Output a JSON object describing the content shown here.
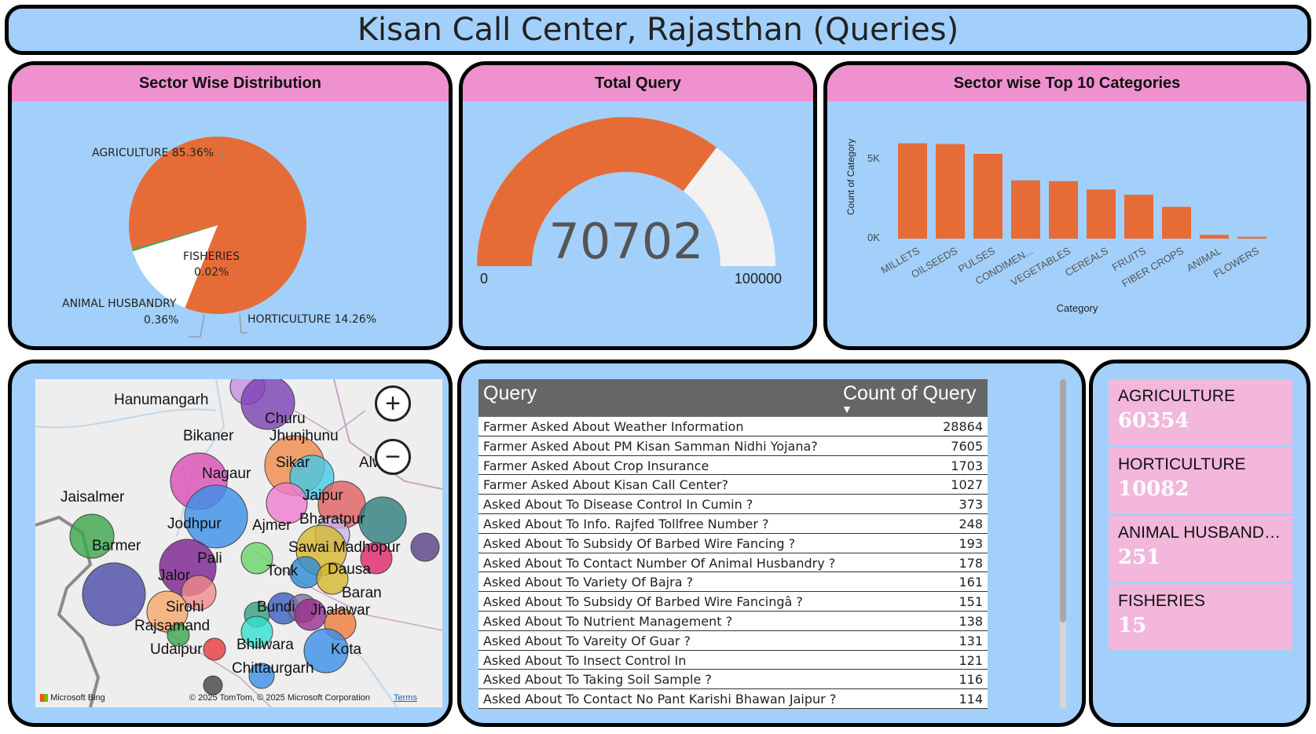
{
  "dashboard": {
    "title": "Kisan Call Center, Rajasthan (Queries)"
  },
  "pie": {
    "header": "Sector Wise Distribution",
    "labels": {
      "agriculture": "AGRICULTURE 85.36%",
      "fisheries_name": "FISHERIES",
      "fisheries_pct": "0.02%",
      "animal_name": "ANIMAL HUSBANDRY",
      "animal_pct": "0.36%",
      "horticulture": "HORTICULTURE 14.26%"
    },
    "colors": {
      "agriculture": "#e66c37",
      "horticulture": "#ffffff",
      "animal": "#39b54a",
      "fisheries": "#6b007b"
    }
  },
  "gauge": {
    "header": "Total Query",
    "value": "70702",
    "min": "0",
    "max": "100000",
    "fill_fraction": 0.70702,
    "colors": {
      "fill": "#e66c37",
      "track": "#f3f2f0"
    }
  },
  "bar": {
    "header": "Sector wise Top 10 Categories",
    "ylabel": "Count of Category",
    "xlabel": "Category",
    "yticks": [
      "5K",
      "0K"
    ]
  },
  "chart_data": {
    "type": "bar",
    "title": "Sector wise Top 10 Categories",
    "xlabel": "Category",
    "ylabel": "Count of Category",
    "categories": [
      "MILLETS",
      "OILSEEDS",
      "PULSES",
      "CONDIMEN...",
      "VEGETABLES",
      "CEREALS",
      "FRUITS",
      "FIBER CROPS",
      "ANIMAL",
      "FLOWERS"
    ],
    "values": [
      6300,
      6250,
      5600,
      3850,
      3800,
      3250,
      2900,
      2100,
      250,
      120
    ],
    "ylim": [
      0,
      7000
    ],
    "color": "#e66c37"
  },
  "map": {
    "zoom_in": "+",
    "zoom_out": "−",
    "attribution": "© 2025 TomTom, © 2025 Microsoft Corporation",
    "terms": "Terms",
    "provider": "Microsoft Bing",
    "cities": [
      {
        "name": "Hanumangarh"
      },
      {
        "name": "Churu"
      },
      {
        "name": "Bikaner"
      },
      {
        "name": "Jhunjhunu"
      },
      {
        "name": "Sikar"
      },
      {
        "name": "Alwa"
      },
      {
        "name": "Nagaur"
      },
      {
        "name": "Jaipur"
      },
      {
        "name": "Jaisalmer"
      },
      {
        "name": "Jodhpur"
      },
      {
        "name": "Ajmer"
      },
      {
        "name": "Bharatpur"
      },
      {
        "name": "Barmer"
      },
      {
        "name": "Sawai Madhopur"
      },
      {
        "name": "Pali"
      },
      {
        "name": "Tonk"
      },
      {
        "name": "Dausa"
      },
      {
        "name": "Jalor"
      },
      {
        "name": "Baran"
      },
      {
        "name": "Sirohi"
      },
      {
        "name": "Bundi"
      },
      {
        "name": "Jhalawar"
      },
      {
        "name": "Rajsamand"
      },
      {
        "name": "Udaipur"
      },
      {
        "name": "Bhilwara"
      },
      {
        "name": "Kota"
      },
      {
        "name": "Chittaurgarh"
      }
    ]
  },
  "table": {
    "col1": "Query",
    "col2": "Count of Query",
    "rows": [
      {
        "q": "Farmer Asked About Weather Information",
        "c": "28864"
      },
      {
        "q": "Farmer Asked About PM Kisan Samman Nidhi Yojana?",
        "c": "7605"
      },
      {
        "q": "Farmer Asked About Crop Insurance",
        "c": "1703"
      },
      {
        "q": "Farmer Asked About Kisan Call Center?",
        "c": "1027"
      },
      {
        "q": "Asked About To Disease Control In Cumin ?",
        "c": "373"
      },
      {
        "q": "Asked About To Info. Rajfed Tollfree Number ?",
        "c": "248"
      },
      {
        "q": "Asked About To Subsidy Of Barbed Wire Fancing ?",
        "c": "193"
      },
      {
        "q": "Asked About To Contact Number Of Animal Husbandry ?",
        "c": "178"
      },
      {
        "q": "Asked About To Variety Of Bajra ?",
        "c": "161"
      },
      {
        "q": "Asked About To Subsidy Of Barbed Wire Fancingâ ?",
        "c": "151"
      },
      {
        "q": "Asked About To Nutrient Management ?",
        "c": "138"
      },
      {
        "q": "Asked About To Vareity Of Guar ?",
        "c": "131"
      },
      {
        "q": "Asked About To Insect Control In",
        "c": "121"
      },
      {
        "q": "Asked About To Taking Soil Sample ?",
        "c": "116"
      },
      {
        "q": "Asked About To Contact No Pant Karishi Bhawan Jaipur ?",
        "c": "114"
      }
    ]
  },
  "kpis": [
    {
      "label": "AGRICULTURE",
      "value": "60354"
    },
    {
      "label": "HORTICULTURE",
      "value": "10082"
    },
    {
      "label": "ANIMAL HUSBANDRY",
      "value": "251"
    },
    {
      "label": "FISHERIES",
      "value": "15"
    }
  ]
}
